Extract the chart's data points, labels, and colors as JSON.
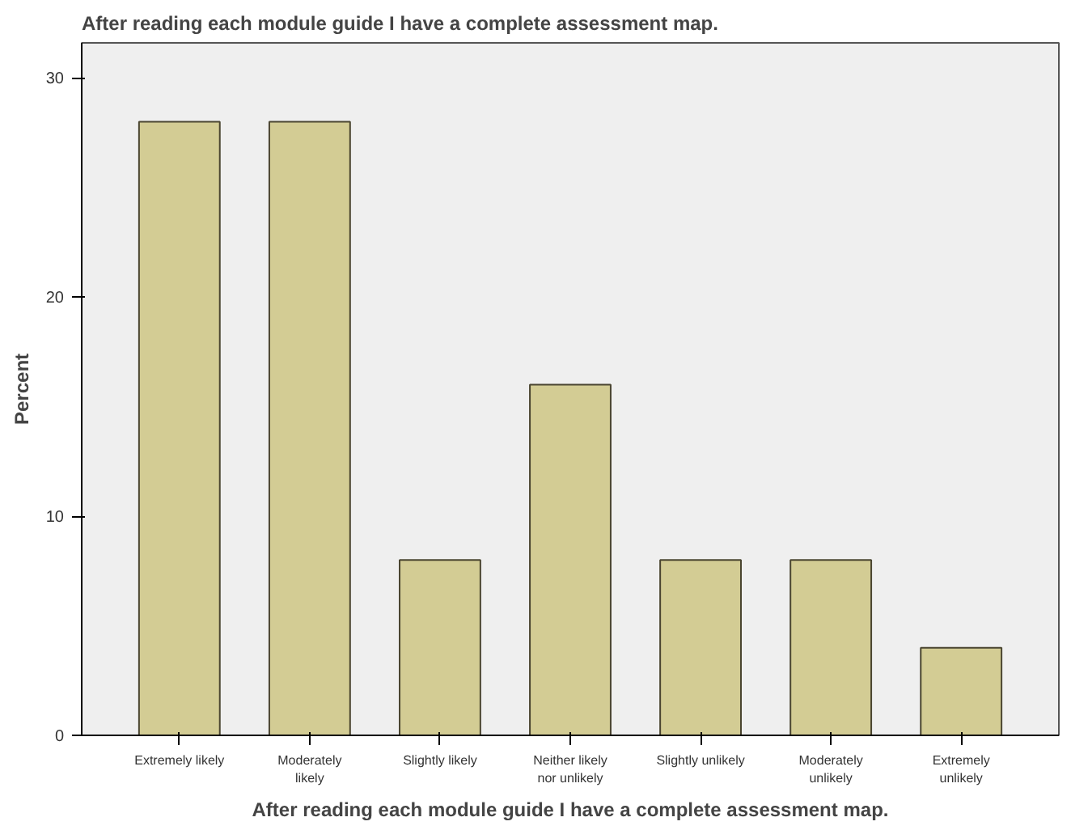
{
  "chart_data": {
    "type": "bar",
    "title": "After reading each module guide I have a complete assessment map.",
    "xlabel": "After reading each module guide I have a complete assessment map.",
    "ylabel": "Percent",
    "categories": [
      "Extremely likely",
      "Moderately\nlikely",
      "Slightly likely",
      "Neither likely\nnor unlikely",
      "Slightly unlikely",
      "Moderately\nunlikely",
      "Extremely\nunlikely"
    ],
    "values": [
      28,
      28,
      8,
      16,
      8,
      8,
      4
    ],
    "color": "#d3cc94",
    "ylim": [
      0,
      31.6
    ],
    "yticks": [
      0,
      10,
      20,
      30
    ],
    "grid": false
  }
}
